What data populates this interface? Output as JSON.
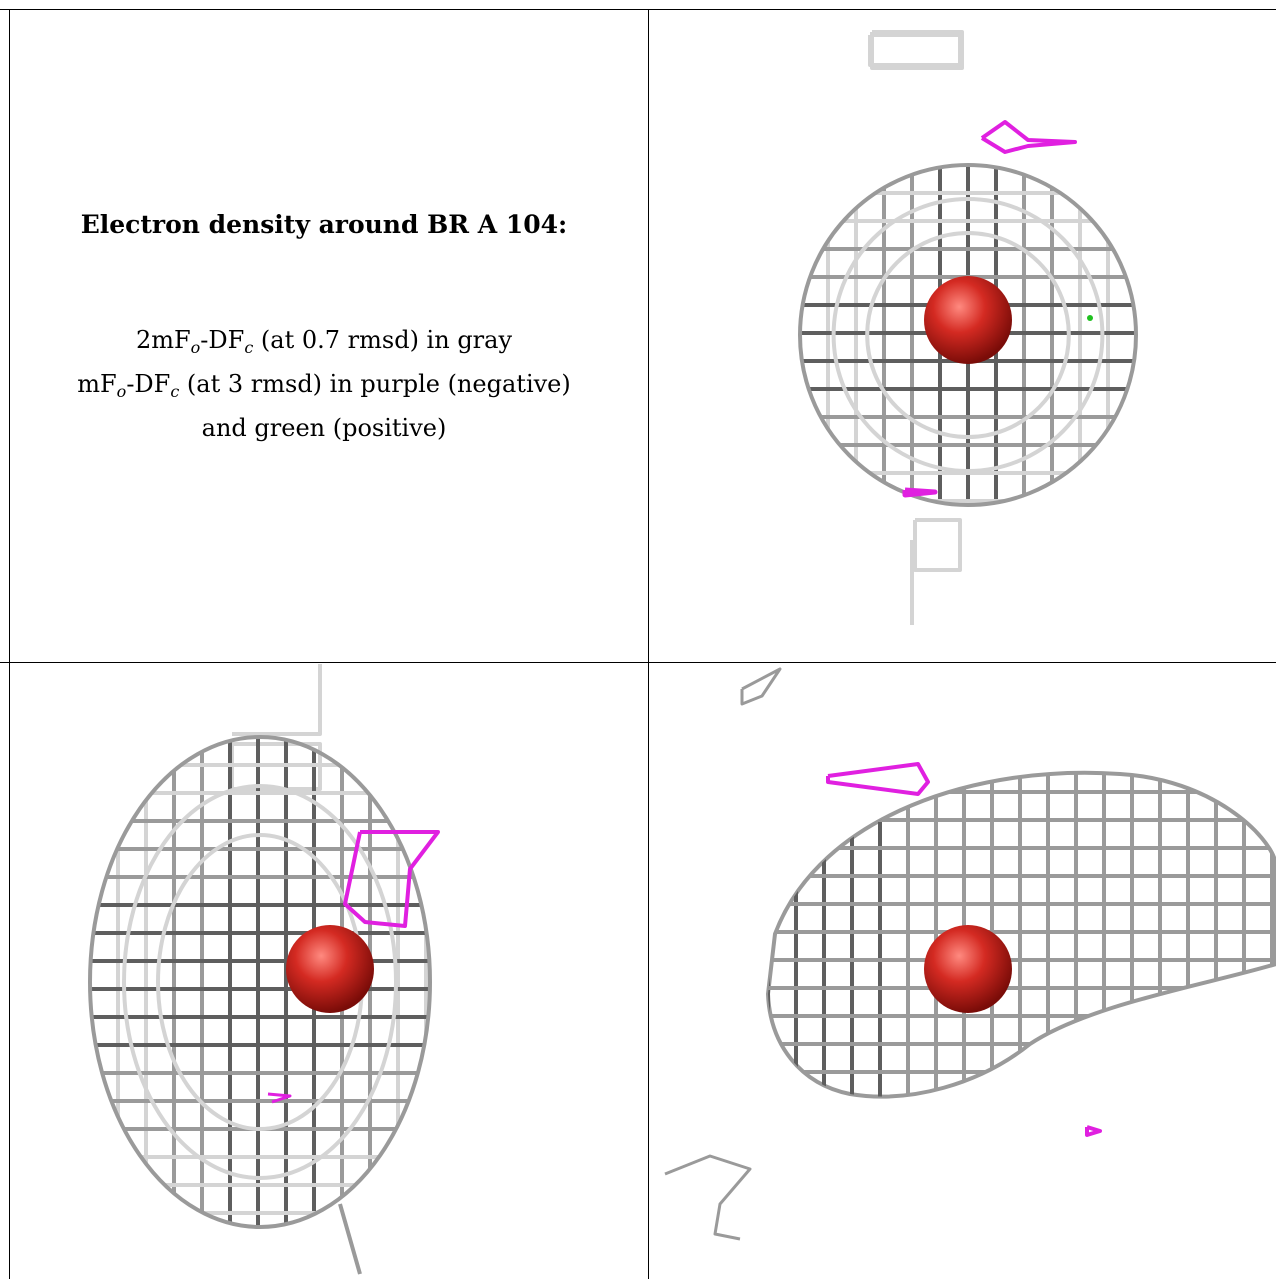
{
  "caption": {
    "title": "Electron density around BR A 104:",
    "line1_prefix": "2mF",
    "line1_sub1": "o",
    "line1_mid": "-DF",
    "line1_sub2": "c",
    "line1_suffix": " (at 0.7 rmsd) in gray",
    "line2_prefix": "mF",
    "line2_sub1": "o",
    "line2_mid": "-DF",
    "line2_sub2": "c",
    "line2_suffix": " (at 3 rmsd) in purple (negative)",
    "line3": "and green (positive)"
  },
  "colors": {
    "mesh_dark": "#5e5e5e",
    "mesh_mid": "#9a9a9a",
    "mesh_light": "#d4d4d4",
    "negative": "#e020e0",
    "positive": "#20c020",
    "atom": "#d42a22",
    "grid_line": "#000000"
  },
  "views": [
    {
      "name": "view-top-right"
    },
    {
      "name": "view-bottom-left"
    },
    {
      "name": "view-bottom-right"
    }
  ]
}
